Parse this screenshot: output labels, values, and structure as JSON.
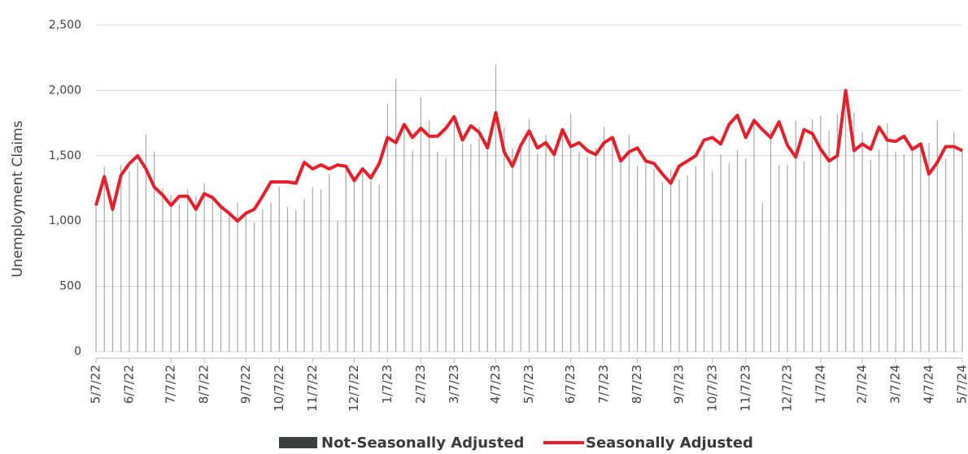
{
  "chart_data": {
    "type": "bar-line",
    "y_label": "Unemployment Claims",
    "ylim": [
      0,
      2500
    ],
    "yticks": [
      0,
      500,
      {
        "value": 1000,
        "label": "1,000"
      },
      {
        "value": 1500,
        "label": "1,500"
      },
      {
        "value": 2000,
        "label": "2,000"
      },
      {
        "value": 2500,
        "label": "2,500"
      }
    ],
    "grid": true,
    "legend": "bottom",
    "categories": [
      "5/7/22",
      null,
      null,
      null,
      "6/7/22",
      null,
      null,
      null,
      null,
      "7/7/22",
      null,
      null,
      null,
      "8/7/22",
      null,
      null,
      null,
      null,
      "9/7/22",
      null,
      null,
      null,
      "10/7/22",
      null,
      null,
      null,
      "11/7/22",
      null,
      null,
      null,
      null,
      "12/7/22",
      null,
      null,
      null,
      "1/7/23",
      null,
      null,
      null,
      "2/7/23",
      null,
      null,
      null,
      "3/7/23",
      null,
      null,
      null,
      null,
      "4/7/23",
      null,
      null,
      null,
      "5/7/23",
      null,
      null,
      null,
      null,
      "6/7/23",
      null,
      null,
      null,
      "7/7/23",
      null,
      null,
      null,
      "8/7/23",
      null,
      null,
      null,
      null,
      "9/7/23",
      null,
      null,
      null,
      "10/7/23",
      null,
      null,
      null,
      "11/7/23",
      null,
      null,
      null,
      null,
      "12/7/23",
      null,
      null,
      null,
      "1/7/24",
      null,
      null,
      null,
      null,
      "2/7/24",
      null,
      null,
      null,
      "3/7/24",
      null,
      null,
      null,
      "4/7/24",
      null,
      null,
      null,
      "5/7/24"
    ],
    "series": [
      {
        "name": "Not-Seasonally Adjusted",
        "type": "bar",
        "color": "#3b3f3d",
        "values": [
          1150,
          1420,
          1090,
          1430,
          1380,
          1450,
          1660,
          1530,
          1250,
          1200,
          1130,
          1240,
          1190,
          1290,
          1200,
          1120,
          1050,
          1140,
          1050,
          990,
          1090,
          1140,
          1260,
          1110,
          1080,
          1170,
          1260,
          1240,
          1360,
          1000,
          1420,
          1340,
          1410,
          1310,
          1280,
          1900,
          2090,
          1720,
          1540,
          1950,
          1770,
          1530,
          1480,
          1780,
          1600,
          1590,
          1720,
          1540,
          2200,
          1720,
          1560,
          1580,
          1780,
          1520,
          1660,
          1530,
          1700,
          1820,
          1530,
          1490,
          1560,
          1720,
          1620,
          1450,
          1660,
          1420,
          1460,
          1400,
          1300,
          1390,
          1320,
          1350,
          1420,
          1540,
          1380,
          1510,
          1440,
          1540,
          1480,
          1790,
          1140,
          1700,
          1430,
          1430,
          1770,
          1460,
          1780,
          1810,
          1690,
          1820,
          1850,
          1830,
          1680,
          1470,
          1550,
          1750,
          1530,
          1510,
          1570,
          1600,
          1600,
          1770,
          1480,
          1680,
          1550
        ]
      },
      {
        "name": "Seasonally Adjusted",
        "type": "line",
        "color": "#e3202c",
        "values": [
          1120,
          1340,
          1090,
          1350,
          1440,
          1500,
          1400,
          1260,
          1200,
          1120,
          1190,
          1190,
          1090,
          1210,
          1180,
          1110,
          1060,
          1000,
          1060,
          1090,
          1190,
          1300,
          1300,
          1300,
          1290,
          1450,
          1400,
          1430,
          1400,
          1430,
          1420,
          1310,
          1400,
          1330,
          1440,
          1640,
          1600,
          1740,
          1640,
          1710,
          1650,
          1650,
          1710,
          1800,
          1620,
          1730,
          1680,
          1560,
          1830,
          1530,
          1420,
          1580,
          1690,
          1560,
          1600,
          1510,
          1700,
          1570,
          1600,
          1540,
          1510,
          1600,
          1640,
          1460,
          1530,
          1560,
          1460,
          1440,
          1360,
          1290,
          1420,
          1460,
          1500,
          1620,
          1640,
          1590,
          1740,
          1810,
          1640,
          1770,
          1700,
          1640,
          1760,
          1580,
          1490,
          1700,
          1670,
          1550,
          1460,
          1500,
          2000,
          1540,
          1590,
          1550,
          1720,
          1620,
          1610,
          1650,
          1550,
          1590,
          1360,
          1450,
          1570,
          1570,
          1540
        ]
      }
    ]
  }
}
